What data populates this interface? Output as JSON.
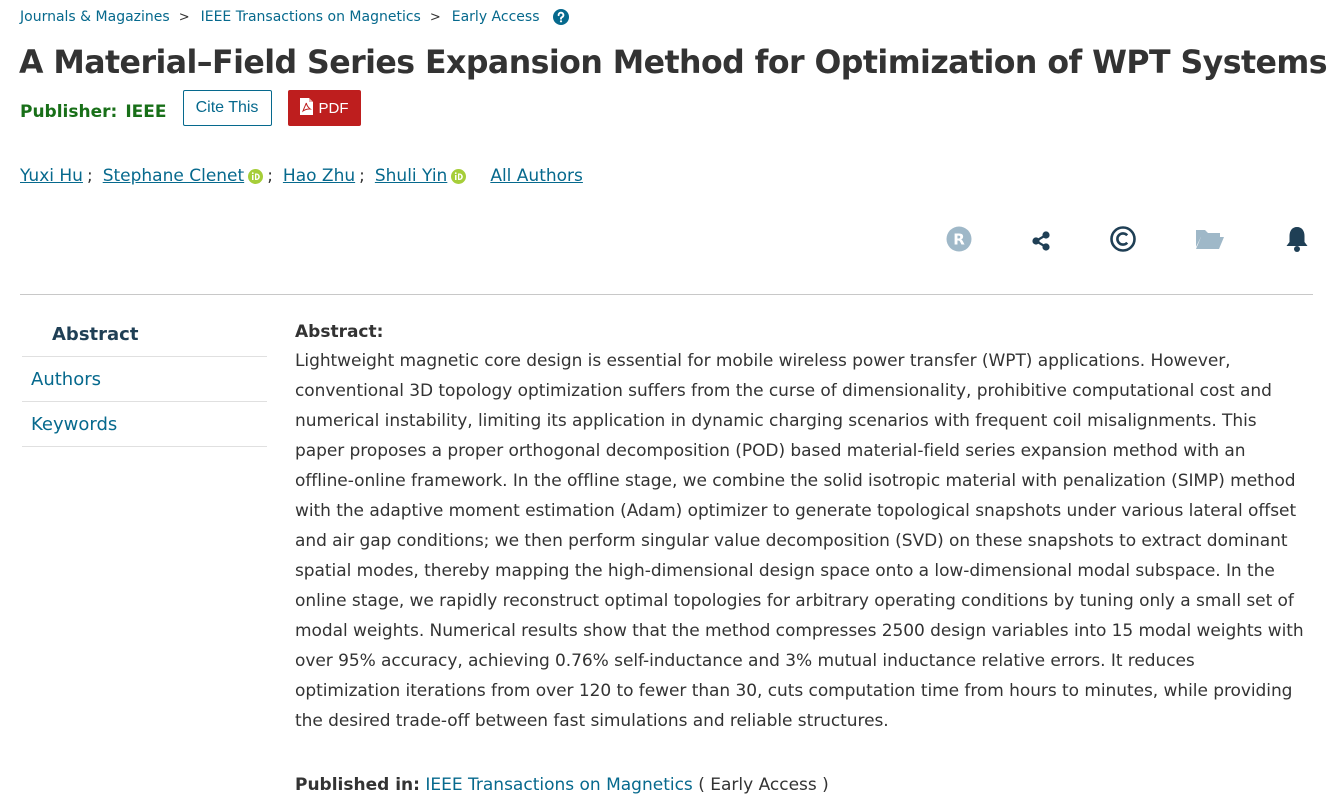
{
  "breadcrumb": {
    "items": [
      "Journals & Magazines",
      "IEEE Transactions on Magnetics",
      "Early Access"
    ],
    "separator": ">",
    "help_icon": "question-circle-icon"
  },
  "article": {
    "title": "A Material–Field Series Expansion Method for Optimization of WPT Systems",
    "publisher_label": "Publisher:",
    "publisher_name": "IEEE",
    "cite_label": "Cite This",
    "pdf_label": "PDF"
  },
  "authors": {
    "list": [
      {
        "name": "Yuxi Hu",
        "orcid": false
      },
      {
        "name": "Stephane Clenet",
        "orcid": true
      },
      {
        "name": "Hao Zhu",
        "orcid": false
      },
      {
        "name": "Shuli Yin",
        "orcid": true
      }
    ],
    "separator": ";",
    "all_authors_label": "All Authors"
  },
  "tools": [
    "rights-icon",
    "share-icon",
    "copyright-icon",
    "folder-icon",
    "bell-icon"
  ],
  "sidenav": {
    "items": [
      "Abstract",
      "Authors",
      "Keywords"
    ]
  },
  "abstract": {
    "heading": "Abstract:",
    "text": "Lightweight magnetic core design is essential for mobile wireless power transfer (WPT) applications. However, conventional 3D topology optimization suffers from the curse of dimensionality, prohibitive computational cost and numerical instability, limiting its application in dynamic charging scenarios with frequent coil misalignments. This paper proposes a proper orthogonal decomposition (POD) based material-field series expansion method with an offline-online framework. In the offline stage, we combine the solid isotropic material with penalization (SIMP) method with the adaptive moment estimation (Adam) optimizer to generate topological snapshots under various lateral offset and air gap conditions; we then perform singular value decomposition (SVD) on these snapshots to extract dominant spatial modes, thereby mapping the high-dimensional design space onto a low-dimensional modal subspace. In the online stage, we rapidly reconstruct optimal topologies for arbitrary operating conditions by tuning only a small set of modal weights. Numerical results show that the method compresses 2500 design variables into 15 modal weights with over 95% accuracy, achieving 0.76% self-inductance and 3% mutual inductance relative errors. It reduces optimization iterations from over 120 to fewer than 30, cuts computation time from hours to minutes, while providing the desired trade-off between fast simulations and reliable structures."
  },
  "published_in": {
    "label": "Published in:",
    "journal": "IEEE Transactions on Magnetics",
    "status": "( Early Access )"
  },
  "colors": {
    "link": "#06698d",
    "publisher_green": "#186f18",
    "pdf_red": "#be1e1e",
    "orcid_green": "#a6ce39",
    "rights_gray": "#9fb8c8"
  }
}
